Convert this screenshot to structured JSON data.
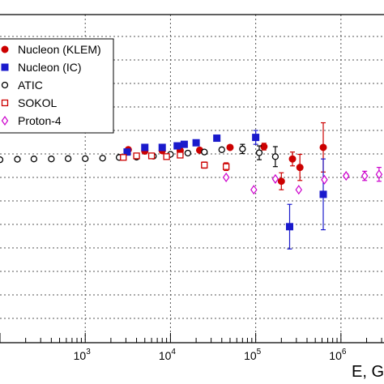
{
  "chart_data": {
    "type": "scatter",
    "x_scale": "log",
    "xlim": [
      100,
      3200000
    ],
    "xlabel": "E, G",
    "grid": true,
    "legend_position": "top-left",
    "x_ticks": [
      {
        "value": 1000,
        "base": "10",
        "exp": "3"
      },
      {
        "value": 10000,
        "base": "10",
        "exp": "4"
      },
      {
        "value": 100000,
        "base": "10",
        "exp": "5"
      },
      {
        "value": 1000000,
        "base": "10",
        "exp": "6"
      }
    ],
    "series": [
      {
        "name": "Nucleon (KLEM)",
        "marker": "circle-filled",
        "color": "#cc0000",
        "points": [
          {
            "x": 3200,
            "y": 0.8
          },
          {
            "x": 5000,
            "y": 0.71
          },
          {
            "x": 8000,
            "y": 0.74
          },
          {
            "x": 13000,
            "y": 0.75
          },
          {
            "x": 22000,
            "y": 0.77
          },
          {
            "x": 50000,
            "y": 0.95,
            "yerr": 0.12
          },
          {
            "x": 125000,
            "y": 1.0,
            "yerr": 0.22
          },
          {
            "x": 200000,
            "y": -1.25,
            "yerr": 0.55
          },
          {
            "x": 270000,
            "y": 0.2,
            "yerr": 0.45
          },
          {
            "x": 330000,
            "y": -0.35,
            "yerr": 0.85
          },
          {
            "x": 620000,
            "y": 0.95,
            "yerr": 1.6
          }
        ]
      },
      {
        "name": "Nucleon (IC)",
        "marker": "square-filled",
        "color": "#1a1acc",
        "points": [
          {
            "x": 3100,
            "y": 0.65
          },
          {
            "x": 5000,
            "y": 0.95
          },
          {
            "x": 8000,
            "y": 0.95
          },
          {
            "x": 12000,
            "y": 1.05
          },
          {
            "x": 14500,
            "y": 1.15
          },
          {
            "x": 20000,
            "y": 1.25
          },
          {
            "x": 35000,
            "y": 1.55
          },
          {
            "x": 100000,
            "y": 1.6,
            "yerr": 0.45
          },
          {
            "x": 250000,
            "y": -4.2,
            "yerr": 1.45
          },
          {
            "x": 620000,
            "y": -2.1,
            "yerr": 2.3
          }
        ]
      },
      {
        "name": "ATIC",
        "marker": "circle-open",
        "color": "#000000",
        "points": [
          {
            "x": 100,
            "y": 0.15
          },
          {
            "x": 160,
            "y": 0.18
          },
          {
            "x": 250,
            "y": 0.2
          },
          {
            "x": 400,
            "y": 0.2
          },
          {
            "x": 630,
            "y": 0.22
          },
          {
            "x": 1000,
            "y": 0.22
          },
          {
            "x": 1600,
            "y": 0.25
          },
          {
            "x": 2500,
            "y": 0.3
          },
          {
            "x": 4000,
            "y": 0.32
          },
          {
            "x": 6300,
            "y": 0.38
          },
          {
            "x": 10000,
            "y": 0.5
          },
          {
            "x": 16000,
            "y": 0.58
          },
          {
            "x": 25000,
            "y": 0.65
          },
          {
            "x": 40000,
            "y": 0.8
          },
          {
            "x": 70000,
            "y": 0.85,
            "yerr": 0.3
          },
          {
            "x": 110000,
            "y": 0.6,
            "yerr": 0.45
          },
          {
            "x": 170000,
            "y": 0.35,
            "yerr": 0.65
          }
        ]
      },
      {
        "name": "SOKOL",
        "marker": "square-open",
        "color": "#cc0000",
        "points": [
          {
            "x": 2800,
            "y": 0.3
          },
          {
            "x": 4000,
            "y": 0.4
          },
          {
            "x": 6000,
            "y": 0.4
          },
          {
            "x": 9000,
            "y": 0.35
          },
          {
            "x": 13000,
            "y": 0.45
          },
          {
            "x": 25000,
            "y": -0.2,
            "yerr": 0.2
          },
          {
            "x": 45000,
            "y": -0.3,
            "yerr": 0.25
          }
        ]
      },
      {
        "name": "Proton-4",
        "marker": "diamond-open",
        "color": "#cc00cc",
        "points": [
          {
            "x": 45000,
            "y": -1.0
          },
          {
            "x": 95000,
            "y": -1.8
          },
          {
            "x": 170000,
            "y": -1.1
          },
          {
            "x": 320000,
            "y": -1.8
          },
          {
            "x": 640000,
            "y": -1.15
          },
          {
            "x": 1150000,
            "y": -0.9,
            "yerr": 0.12
          },
          {
            "x": 1900000,
            "y": -0.9,
            "yerr": 0.3
          },
          {
            "x": 2800000,
            "y": -0.8,
            "yerr": 0.45
          }
        ]
      }
    ]
  }
}
